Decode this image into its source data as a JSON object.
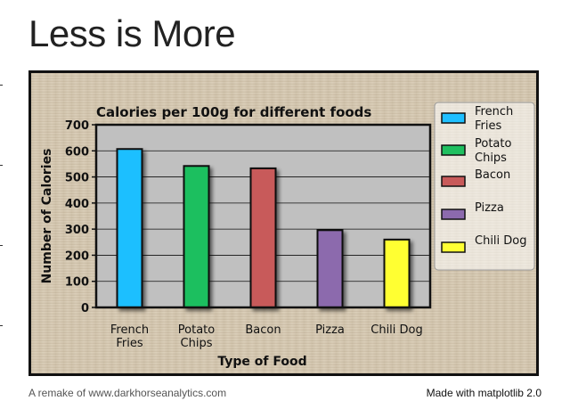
{
  "page": {
    "title": "Less is More",
    "footer_left": "A remake of www.darkhorseanalytics.com",
    "footer_right": "Made with matplotlib 2.0"
  },
  "colors": {
    "plot_background": "#c0c0c0",
    "grid": "#111111",
    "bar_edge": "#111111"
  },
  "chart_data": {
    "type": "bar",
    "title": "Calories per 100g for different foods",
    "xlabel": "Type of Food",
    "ylabel": "Number of Calories",
    "categories": [
      [
        "French",
        "Fries"
      ],
      [
        "Potato",
        "Chips"
      ],
      [
        "Bacon"
      ],
      [
        "Pizza"
      ],
      [
        "Chili Dog"
      ]
    ],
    "values": [
      607,
      542,
      533,
      296,
      260
    ],
    "bar_colors": [
      "#1fbfff",
      "#1fbf5f",
      "#c85a5a",
      "#8c6aad",
      "#ffff33"
    ],
    "ylim": [
      0,
      700
    ],
    "yticks": [
      0,
      100,
      200,
      300,
      400,
      500,
      600,
      700
    ],
    "grid": "horizontal",
    "legend": {
      "placement": "right",
      "entries": [
        [
          "French",
          "Fries"
        ],
        [
          "Potato",
          "Chips"
        ],
        [
          "Bacon"
        ],
        [
          "Pizza"
        ],
        [
          "Chili Dog"
        ]
      ]
    }
  }
}
